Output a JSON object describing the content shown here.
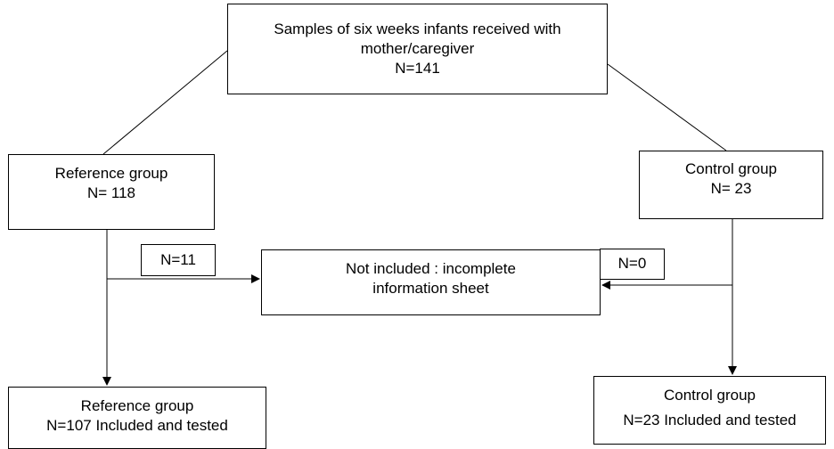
{
  "top_box": {
    "line1": "Samples of six weeks infants received with",
    "line2": "mother/caregiver",
    "line3": "N=141"
  },
  "reference_box": {
    "title": "Reference group",
    "count": "N= 118"
  },
  "control_box": {
    "title": "Control group",
    "count": "N= 23"
  },
  "excluded_box": {
    "line1": "Not included : incomplete",
    "line2": "information sheet"
  },
  "reference_excluded_label": "N=11",
  "control_excluded_label": "N=0",
  "reference_final_box": {
    "title": "Reference group",
    "detail": "N=107 Included and tested"
  },
  "control_final_box": {
    "title": "Control group",
    "detail": "N=23 Included and tested"
  },
  "colors": {
    "line": "#000000",
    "box_border": "#000000",
    "background": "#ffffff"
  }
}
